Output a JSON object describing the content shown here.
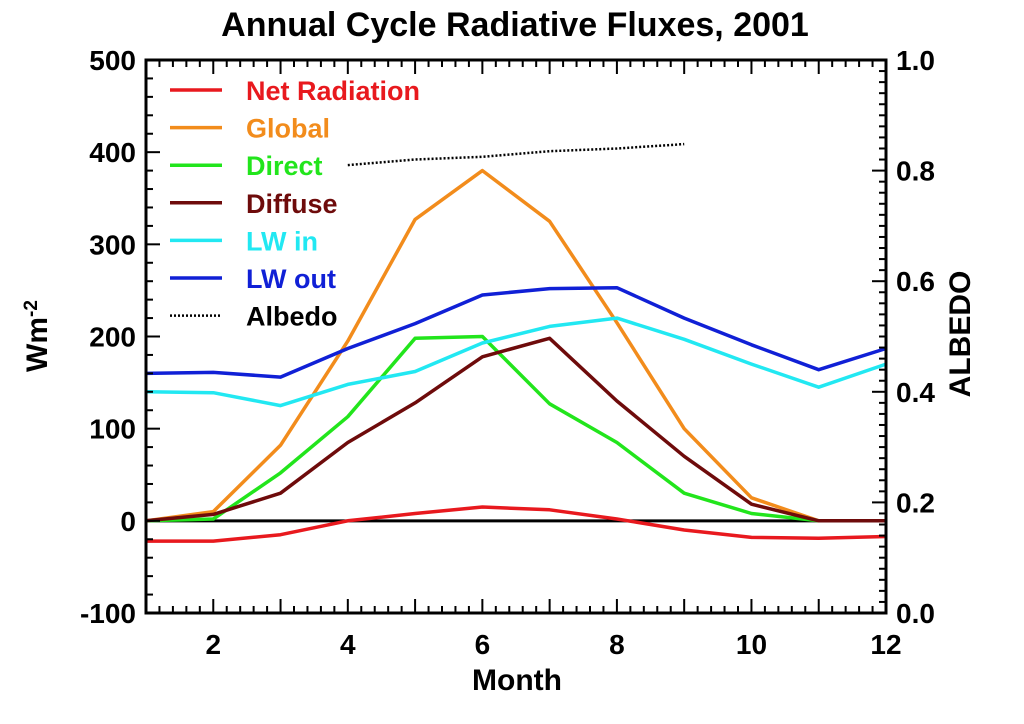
{
  "chart_data": {
    "type": "line",
    "title": "Annual Cycle Radiative Fluxes, 2001",
    "xlabel": "Month",
    "ylabel": "Wm",
    "ylabel_sup": "-2",
    "y2label": "ALBEDO",
    "xlim": [
      1,
      12
    ],
    "ylim": [
      -100,
      500
    ],
    "y2lim": [
      0.0,
      1.0
    ],
    "xticks": [
      2,
      4,
      6,
      8,
      10,
      12
    ],
    "yticks": [
      -100,
      0,
      100,
      200,
      300,
      400,
      500
    ],
    "y2ticks": [
      "0.0",
      "0.2",
      "0.4",
      "0.6",
      "0.8",
      "1.0"
    ],
    "x": [
      1,
      2,
      3,
      4,
      5,
      6,
      7,
      8,
      9,
      10,
      11,
      12
    ],
    "legend_position": "top-left",
    "grid": false,
    "zero_line": true,
    "series": [
      {
        "name": "Net Radiation",
        "color": "#e8191e",
        "axis": "left",
        "values": [
          -22,
          -22,
          -15,
          0,
          8,
          15,
          12,
          2,
          -10,
          -18,
          -19,
          -17
        ]
      },
      {
        "name": "Global",
        "color": "#f28c1c",
        "axis": "left",
        "values": [
          0,
          10,
          82,
          195,
          327,
          380,
          325,
          215,
          100,
          25,
          0,
          0
        ]
      },
      {
        "name": "Direct",
        "color": "#22e51c",
        "axis": "left",
        "values": [
          0,
          2,
          52,
          113,
          198,
          200,
          127,
          85,
          30,
          8,
          0,
          0
        ]
      },
      {
        "name": "Diffuse",
        "color": "#6e0b0b",
        "axis": "left",
        "values": [
          0,
          7,
          30,
          85,
          128,
          178,
          198,
          130,
          70,
          18,
          0,
          0
        ]
      },
      {
        "name": "LW in",
        "color": "#22e8f2",
        "axis": "left",
        "values": [
          140,
          139,
          125,
          148,
          162,
          193,
          211,
          220,
          197,
          170,
          145,
          170
        ]
      },
      {
        "name": "LW out",
        "color": "#1020d6",
        "axis": "left",
        "values": [
          160,
          161,
          156,
          187,
          214,
          245,
          252,
          253,
          220,
          191,
          164,
          187
        ]
      },
      {
        "name": "Albedo",
        "color": "#000000",
        "axis": "right",
        "dashed": true,
        "x": [
          4,
          5,
          6,
          7,
          8,
          9
        ],
        "values": [
          0.81,
          0.82,
          0.825,
          0.835,
          0.84,
          0.848
        ]
      }
    ]
  }
}
